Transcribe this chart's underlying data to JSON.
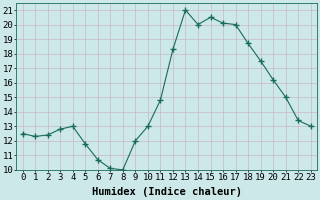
{
  "x": [
    0,
    1,
    2,
    3,
    4,
    5,
    6,
    7,
    8,
    9,
    10,
    11,
    12,
    13,
    14,
    15,
    16,
    17,
    18,
    19,
    20,
    21,
    22,
    23
  ],
  "y": [
    12.5,
    12.3,
    12.4,
    12.8,
    13.0,
    11.8,
    10.7,
    10.1,
    10.0,
    12.0,
    13.0,
    14.8,
    18.3,
    21.0,
    20.0,
    20.5,
    20.1,
    20.0,
    18.7,
    17.5,
    16.2,
    15.0,
    13.4,
    13.0
  ],
  "line_color": "#1a6b5a",
  "marker": "+",
  "marker_size": 4,
  "bg_color": "#cce8e8",
  "grid_color": "#c8b8c8",
  "xlabel": "Humidex (Indice chaleur)",
  "ylim": [
    10,
    21.5
  ],
  "xlim": [
    -0.5,
    23.5
  ],
  "yticks": [
    10,
    11,
    12,
    13,
    14,
    15,
    16,
    17,
    18,
    19,
    20,
    21
  ],
  "xticks": [
    0,
    1,
    2,
    3,
    4,
    5,
    6,
    7,
    8,
    9,
    10,
    11,
    12,
    13,
    14,
    15,
    16,
    17,
    18,
    19,
    20,
    21,
    22,
    23
  ],
  "xlabel_fontsize": 7.5,
  "tick_fontsize": 6.5
}
